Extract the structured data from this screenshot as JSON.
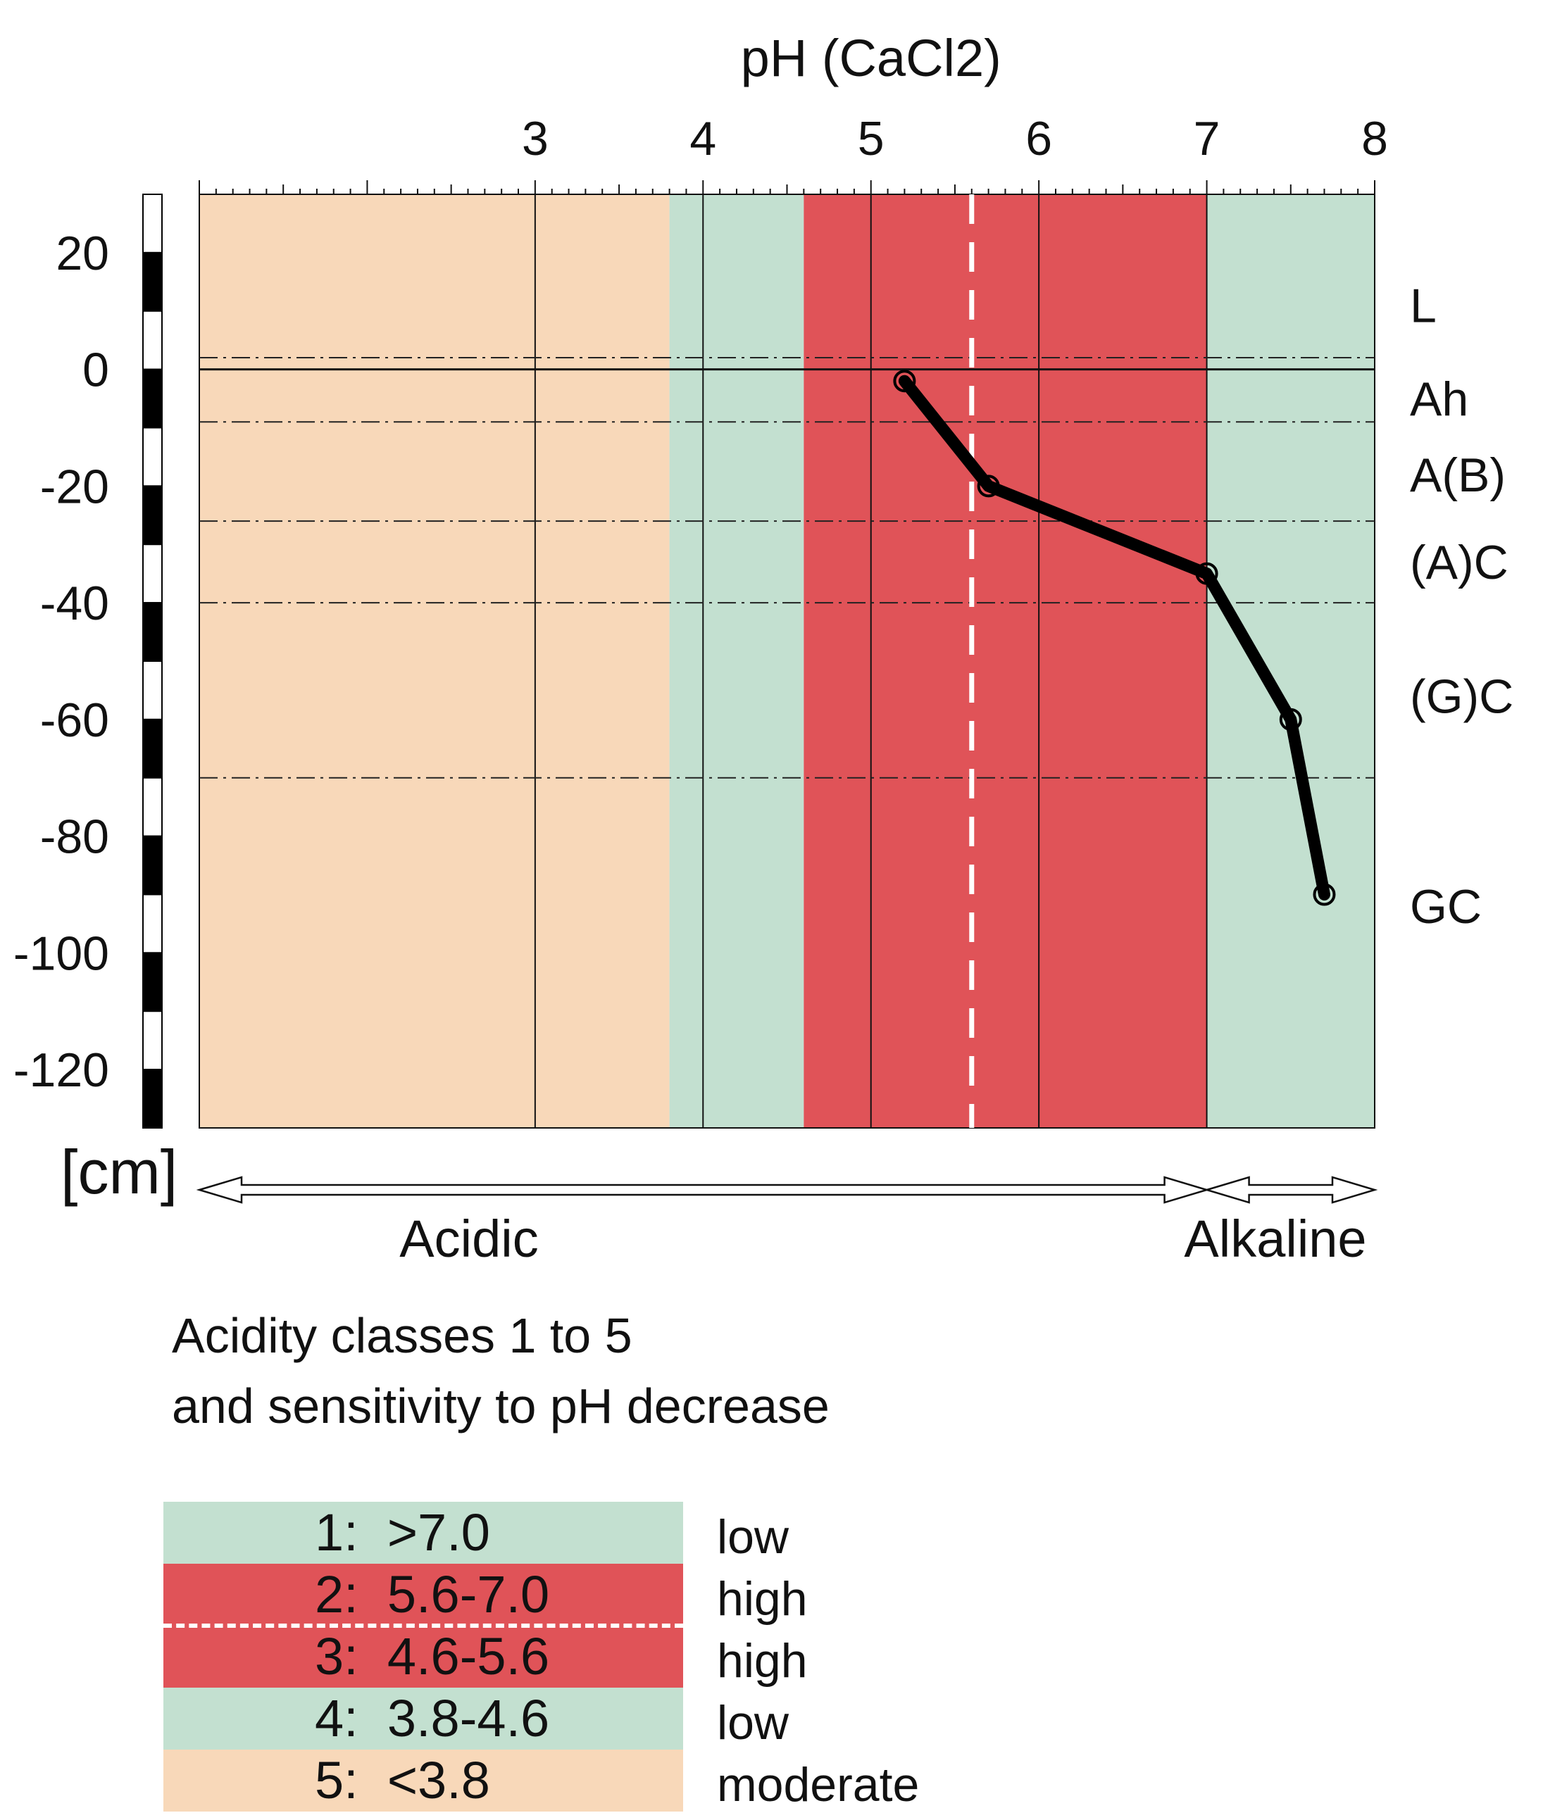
{
  "chart_data": {
    "type": "line",
    "title": "pH (CaCl2)",
    "xlabel": "pH (CaCl2)",
    "ylabel": "[cm]",
    "x_axis_position": "top",
    "xlim": [
      1.0,
      8.0
    ],
    "ylim": [
      -130,
      30
    ],
    "x_ticks": [
      "3",
      "4",
      "5",
      "6",
      "7",
      "8"
    ],
    "x_tick_values": [
      3,
      4,
      5,
      6,
      7,
      8
    ],
    "y_ticks": [
      "20",
      "0",
      "-20",
      "-40",
      "-60",
      "-80",
      "-100",
      "-120"
    ],
    "y_tick_values": [
      20,
      0,
      -20,
      -40,
      -60,
      -80,
      -100,
      -120
    ],
    "series": [
      {
        "x": [
          5.2,
          5.7,
          7.0,
          7.5,
          7.7
        ],
        "y": [
          -2,
          -20,
          -35,
          -60,
          -90
        ]
      }
    ],
    "horizons": [
      {
        "label": "L",
        "boundary": 2,
        "label_depth": 11
      },
      {
        "label": "Ah",
        "boundary": -9,
        "label_depth": -5
      },
      {
        "label": "A(B)",
        "boundary": -26,
        "label_depth": -18
      },
      {
        "label": "(A)C",
        "boundary": -40,
        "label_depth": -33
      },
      {
        "label": "(G)C",
        "boundary": -70,
        "label_depth": -56
      },
      {
        "label": "GC",
        "boundary": null,
        "label_depth": -92
      }
    ],
    "zero_line": 0,
    "class_bands": [
      {
        "from": 1.0,
        "to": 3.8,
        "color": "#f8d8b9"
      },
      {
        "from": 3.8,
        "to": 4.6,
        "color": "#c3e0d0"
      },
      {
        "from": 4.6,
        "to": 7.0,
        "color": "#e05358"
      },
      {
        "from": 7.0,
        "to": 8.0,
        "color": "#c3e0d0"
      }
    ],
    "class_boundary_dashed": 5.6,
    "arrows": [
      {
        "label": "Acidic",
        "from": 1.0,
        "to": 7.0
      },
      {
        "label": "Alkaline",
        "from": 7.0,
        "to": 8.0
      }
    ]
  },
  "subtitle": {
    "line1": "Acidity classes 1 to 5",
    "line2": "and sensitivity to pH decrease"
  },
  "legend": [
    {
      "label": "1:  >7.0",
      "sensitivity": "low",
      "color": "#c3e0d0"
    },
    {
      "label": "2:  5.6-7.0",
      "sensitivity": "high",
      "color": "#e05358"
    },
    {
      "label": "3:  4.6-5.6",
      "sensitivity": "high",
      "color": "#e05358"
    },
    {
      "label": "4:  3.8-4.6",
      "sensitivity": "low",
      "color": "#c3e0d0"
    },
    {
      "label": "5:  <3.8",
      "sensitivity": "moderate",
      "color": "#f8d8b9"
    }
  ]
}
